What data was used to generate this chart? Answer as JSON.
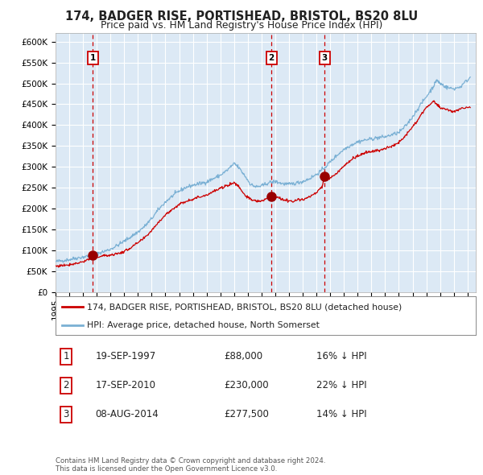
{
  "title": "174, BADGER RISE, PORTISHEAD, BRISTOL, BS20 8LU",
  "subtitle": "Price paid vs. HM Land Registry's House Price Index (HPI)",
  "ylim": [
    0,
    620000
  ],
  "yticks": [
    0,
    50000,
    100000,
    150000,
    200000,
    250000,
    300000,
    350000,
    400000,
    450000,
    500000,
    550000,
    600000
  ],
  "ytick_labels": [
    "£0",
    "£50K",
    "£100K",
    "£150K",
    "£200K",
    "£250K",
    "£300K",
    "£350K",
    "£400K",
    "£450K",
    "£500K",
    "£550K",
    "£600K"
  ],
  "xlim_start": 1995.0,
  "xlim_end": 2025.6,
  "xtick_years": [
    1995,
    1996,
    1997,
    1998,
    1999,
    2000,
    2001,
    2002,
    2003,
    2004,
    2005,
    2006,
    2007,
    2008,
    2009,
    2010,
    2011,
    2012,
    2013,
    2014,
    2015,
    2016,
    2017,
    2018,
    2019,
    2020,
    2021,
    2022,
    2023,
    2024,
    2025
  ],
  "background_color": "#dce9f5",
  "grid_color": "#ffffff",
  "red_line_color": "#cc0000",
  "blue_line_color": "#7ab0d4",
  "sale_marker_color": "#990000",
  "dashed_line_color": "#cc0000",
  "sale1_date": 1997.72,
  "sale1_price": 88000,
  "sale2_date": 2010.72,
  "sale2_price": 230000,
  "sale3_date": 2014.6,
  "sale3_price": 277500,
  "legend_red_label": "174, BADGER RISE, PORTISHEAD, BRISTOL, BS20 8LU (detached house)",
  "legend_blue_label": "HPI: Average price, detached house, North Somerset",
  "table_rows": [
    {
      "num": "1",
      "date": "19-SEP-1997",
      "price": "£88,000",
      "hpi": "16% ↓ HPI"
    },
    {
      "num": "2",
      "date": "17-SEP-2010",
      "price": "£230,000",
      "hpi": "22% ↓ HPI"
    },
    {
      "num": "3",
      "date": "08-AUG-2014",
      "price": "£277,500",
      "hpi": "14% ↓ HPI"
    }
  ],
  "footer": "Contains HM Land Registry data © Crown copyright and database right 2024.\nThis data is licensed under the Open Government Licence v3.0.",
  "key_points_blue": [
    [
      1995.0,
      73000
    ],
    [
      1995.5,
      75500
    ],
    [
      1996.0,
      78000
    ],
    [
      1996.5,
      81500
    ],
    [
      1997.0,
      84000
    ],
    [
      1997.5,
      87000
    ],
    [
      1998.0,
      92000
    ],
    [
      1998.5,
      97000
    ],
    [
      1999.0,
      103000
    ],
    [
      1999.5,
      112000
    ],
    [
      2000.0,
      122000
    ],
    [
      2000.5,
      133000
    ],
    [
      2001.0,
      144000
    ],
    [
      2001.5,
      158000
    ],
    [
      2002.0,
      176000
    ],
    [
      2002.5,
      198000
    ],
    [
      2003.0,
      216000
    ],
    [
      2003.5,
      230000
    ],
    [
      2004.0,
      242000
    ],
    [
      2004.5,
      251000
    ],
    [
      2005.0,
      256000
    ],
    [
      2005.5,
      260000
    ],
    [
      2006.0,
      264000
    ],
    [
      2006.5,
      272000
    ],
    [
      2007.0,
      280000
    ],
    [
      2007.5,
      292000
    ],
    [
      2008.0,
      308000
    ],
    [
      2008.3,
      300000
    ],
    [
      2008.8,
      278000
    ],
    [
      2009.2,
      258000
    ],
    [
      2009.6,
      252000
    ],
    [
      2010.0,
      254000
    ],
    [
      2010.5,
      262000
    ],
    [
      2011.0,
      265000
    ],
    [
      2011.5,
      260000
    ],
    [
      2012.0,
      258000
    ],
    [
      2012.5,
      261000
    ],
    [
      2013.0,
      265000
    ],
    [
      2013.5,
      272000
    ],
    [
      2014.0,
      282000
    ],
    [
      2014.5,
      295000
    ],
    [
      2015.0,
      312000
    ],
    [
      2015.5,
      328000
    ],
    [
      2016.0,
      342000
    ],
    [
      2016.5,
      352000
    ],
    [
      2017.0,
      360000
    ],
    [
      2017.5,
      364000
    ],
    [
      2018.0,
      367000
    ],
    [
      2018.5,
      370000
    ],
    [
      2019.0,
      372000
    ],
    [
      2019.5,
      377000
    ],
    [
      2020.0,
      382000
    ],
    [
      2020.5,
      398000
    ],
    [
      2021.0,
      420000
    ],
    [
      2021.5,
      445000
    ],
    [
      2022.0,
      468000
    ],
    [
      2022.5,
      492000
    ],
    [
      2022.75,
      508000
    ],
    [
      2023.0,
      500000
    ],
    [
      2023.5,
      490000
    ],
    [
      2024.0,
      487000
    ],
    [
      2024.5,
      492000
    ],
    [
      2025.2,
      515000
    ]
  ],
  "key_points_red": [
    [
      1995.0,
      62000
    ],
    [
      1995.5,
      64000
    ],
    [
      1996.0,
      66000
    ],
    [
      1996.5,
      69000
    ],
    [
      1997.0,
      73000
    ],
    [
      1997.5,
      80000
    ],
    [
      1997.72,
      88000
    ],
    [
      1998.0,
      84000
    ],
    [
      1998.5,
      87000
    ],
    [
      1999.0,
      89000
    ],
    [
      1999.5,
      92000
    ],
    [
      2000.0,
      97000
    ],
    [
      2000.5,
      107000
    ],
    [
      2001.0,
      118000
    ],
    [
      2001.5,
      130000
    ],
    [
      2002.0,
      148000
    ],
    [
      2002.5,
      168000
    ],
    [
      2003.0,
      185000
    ],
    [
      2003.5,
      198000
    ],
    [
      2004.0,
      210000
    ],
    [
      2004.5,
      218000
    ],
    [
      2005.0,
      223000
    ],
    [
      2005.5,
      228000
    ],
    [
      2006.0,
      233000
    ],
    [
      2006.5,
      241000
    ],
    [
      2007.0,
      248000
    ],
    [
      2007.5,
      256000
    ],
    [
      2008.0,
      262000
    ],
    [
      2008.3,
      255000
    ],
    [
      2008.8,
      232000
    ],
    [
      2009.2,
      222000
    ],
    [
      2009.6,
      218000
    ],
    [
      2010.0,
      218000
    ],
    [
      2010.5,
      225000
    ],
    [
      2010.72,
      230000
    ],
    [
      2011.0,
      228000
    ],
    [
      2011.5,
      222000
    ],
    [
      2012.0,
      218000
    ],
    [
      2012.5,
      220000
    ],
    [
      2013.0,
      222000
    ],
    [
      2013.5,
      228000
    ],
    [
      2014.0,
      238000
    ],
    [
      2014.4,
      252000
    ],
    [
      2014.6,
      277500
    ],
    [
      2015.0,
      273000
    ],
    [
      2015.5,
      285000
    ],
    [
      2016.0,
      303000
    ],
    [
      2016.5,
      316000
    ],
    [
      2017.0,
      326000
    ],
    [
      2017.5,
      333000
    ],
    [
      2018.0,
      336000
    ],
    [
      2018.5,
      340000
    ],
    [
      2019.0,
      343000
    ],
    [
      2019.5,
      350000
    ],
    [
      2020.0,
      358000
    ],
    [
      2020.5,
      376000
    ],
    [
      2021.0,
      396000
    ],
    [
      2021.5,
      418000
    ],
    [
      2022.0,
      442000
    ],
    [
      2022.5,
      458000
    ],
    [
      2022.75,
      450000
    ],
    [
      2023.0,
      442000
    ],
    [
      2023.5,
      437000
    ],
    [
      2024.0,
      433000
    ],
    [
      2024.5,
      438000
    ],
    [
      2025.2,
      442000
    ]
  ]
}
